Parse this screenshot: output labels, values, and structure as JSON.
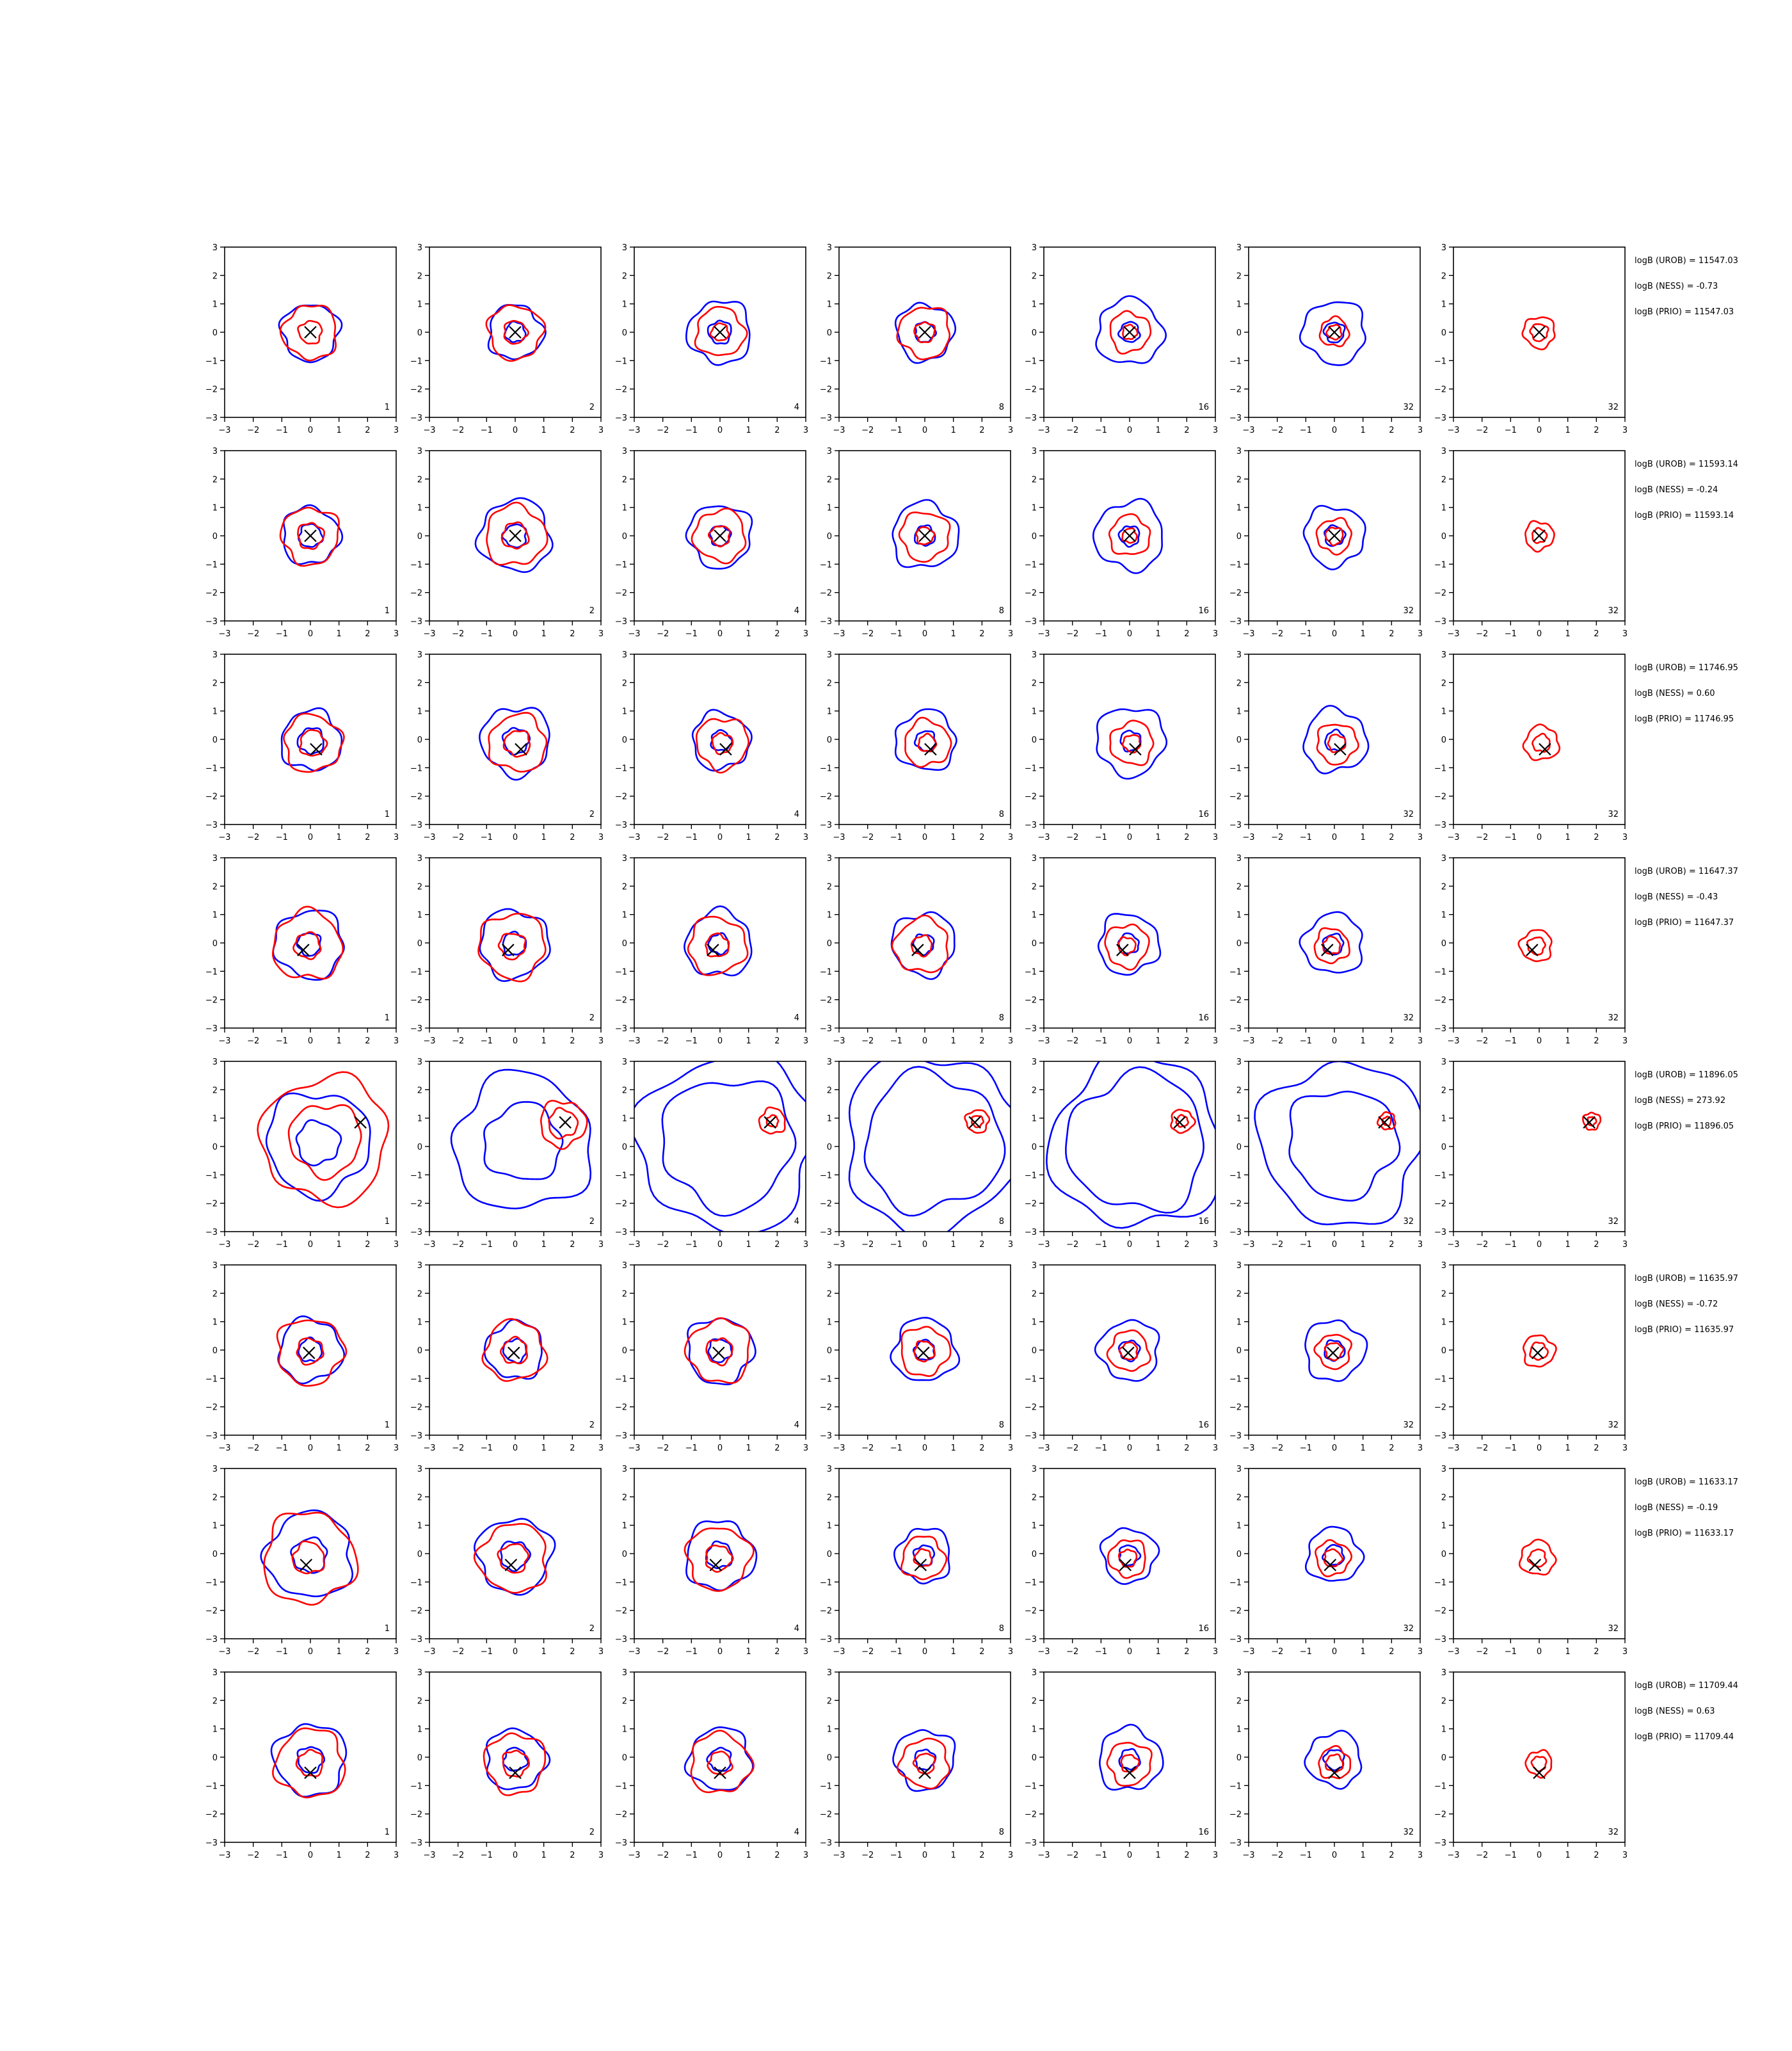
{
  "chart_data": {
    "type": "contour",
    "title": "",
    "xlabel": "",
    "ylabel": "",
    "xlim": [
      -3,
      3
    ],
    "ylim": [
      -3,
      3
    ],
    "xticks": [
      "−3",
      "−2",
      "−1",
      "0",
      "1",
      "2",
      "3"
    ],
    "yticks": [
      "3",
      "2",
      "1",
      "0",
      "−1",
      "−2",
      "−3"
    ],
    "grid": false,
    "series_colors": {
      "blue": "#0000ff",
      "red": "#ff0000",
      "marker": "#000000"
    },
    "column_labels": [
      "1",
      "2",
      "4",
      "8",
      "16",
      "32",
      "32"
    ],
    "rows": [
      {
        "marker": [
          0.0,
          0.0
        ],
        "evidence": [
          "logB (UROB) = 11547.03",
          "logB (NESS) = -0.73",
          "logB (PRIO) = 11547.03"
        ],
        "panels": [
          {
            "blue": [
              1.0
            ],
            "red": [
              0.95,
              0.4
            ]
          },
          {
            "blue": [
              0.95,
              0.35
            ],
            "red": [
              0.95,
              0.4
            ]
          },
          {
            "blue": [
              1.1,
              0.4
            ],
            "red": [
              0.85,
              0.3
            ]
          },
          {
            "blue": [
              1.0,
              0.35
            ],
            "red": [
              0.9,
              0.35
            ]
          },
          {
            "blue": [
              1.15,
              0.35
            ],
            "red": [
              0.7,
              0.25
            ]
          },
          {
            "blue": [
              1.1,
              0.35
            ],
            "red": [
              0.5,
              0.25
            ]
          },
          {
            "blue": [],
            "red": [
              0.55,
              0.3
            ]
          }
        ]
      },
      {
        "marker": [
          0.0,
          0.0
        ],
        "evidence": [
          "logB (UROB) = 11593.14",
          "logB (NESS) = -0.24",
          "logB (PRIO) = 11593.14"
        ],
        "panels": [
          {
            "blue": [
              1.0,
              0.4
            ],
            "red": [
              1.0,
              0.45
            ]
          },
          {
            "blue": [
              1.25,
              0.4
            ],
            "red": [
              1.05,
              0.45
            ]
          },
          {
            "blue": [
              1.1,
              0.35
            ],
            "red": [
              0.9,
              0.35
            ]
          },
          {
            "blue": [
              1.15,
              0.35
            ],
            "red": [
              0.85,
              0.3
            ]
          },
          {
            "blue": [
              1.2,
              0.35
            ],
            "red": [
              0.7,
              0.25
            ]
          },
          {
            "blue": [
              1.05,
              0.35
            ],
            "red": [
              0.6,
              0.3
            ]
          },
          {
            "blue": [],
            "red": [
              0.5,
              0.25
            ]
          }
        ]
      },
      {
        "marker": [
          0.2,
          -0.35
        ],
        "evidence": [
          "logB (UROB) = 11746.95",
          "logB (NESS) = 0.60",
          "logB (PRIO) = 11746.95"
        ],
        "panels": [
          {
            "blue": [
              1.05,
              0.45
            ],
            "red": [
              1.0,
              0.45
            ]
          },
          {
            "blue": [
              1.2,
              0.45
            ],
            "red": [
              1.0,
              0.45
            ]
          },
          {
            "blue": [
              1.0,
              0.35
            ],
            "red": [
              0.9,
              0.35
            ]
          },
          {
            "blue": [
              1.05,
              0.35
            ],
            "red": [
              0.8,
              0.3
            ]
          },
          {
            "blue": [
              1.2,
              0.35
            ],
            "red": [
              0.75,
              0.3
            ]
          },
          {
            "blue": [
              1.1,
              0.35
            ],
            "red": [
              0.7,
              0.3
            ]
          },
          {
            "blue": [],
            "red": [
              0.6,
              0.3
            ]
          }
        ]
      },
      {
        "marker": [
          -0.25,
          -0.25
        ],
        "evidence": [
          "logB (UROB) = 11647.37",
          "logB (NESS) = -0.43",
          "logB (PRIO) = 11647.37"
        ],
        "panels": [
          {
            "blue": [
              1.2,
              0.4
            ],
            "red": [
              1.2,
              0.45
            ]
          },
          {
            "blue": [
              1.2,
              0.4
            ],
            "red": [
              1.15,
              0.45
            ]
          },
          {
            "blue": [
              1.15,
              0.35
            ],
            "red": [
              1.0,
              0.4
            ]
          },
          {
            "blue": [
              1.1,
              0.35
            ],
            "red": [
              0.95,
              0.35
            ]
          },
          {
            "blue": [
              1.05,
              0.35
            ],
            "red": [
              0.75,
              0.3
            ]
          },
          {
            "blue": [
              1.05,
              0.35
            ],
            "red": [
              0.6,
              0.3
            ]
          },
          {
            "blue": [],
            "red": [
              0.55,
              0.3
            ]
          }
        ]
      },
      {
        "marker": [
          1.75,
          0.85
        ],
        "evidence": [
          "logB (UROB) = 11896.05",
          "logB (NESS) = 273.92",
          "logB (PRIO) = 11896.05"
        ],
        "panels": [
          {
            "blue": [
              1.8,
              0.75
            ],
            "red": [
              2.2,
              1.25
            ]
          },
          {
            "blue": [
              2.4,
              1.35
            ],
            "red": [
              0.8,
              0.5
            ]
          },
          {
            "blue": [
              3.1,
              2.3
            ],
            "red": [
              0.45,
              0.2
            ]
          },
          {
            "blue": [
              3.1,
              2.4
            ],
            "red": [
              0.4,
              0.2
            ]
          },
          {
            "blue": [
              3.0,
              2.4
            ],
            "red": [
              0.4,
              0.2
            ]
          },
          {
            "blue": [
              2.85,
              1.9
            ],
            "red": [
              0.3,
              0.15
            ]
          },
          {
            "blue": [],
            "red": [
              0.3,
              0.15
            ]
          }
        ]
      },
      {
        "marker": [
          -0.05,
          -0.1
        ],
        "evidence": [
          "logB (UROB) = 11635.97",
          "logB (NESS) = -0.72",
          "logB (PRIO) = 11635.97"
        ],
        "panels": [
          {
            "blue": [
              1.1,
              0.4
            ],
            "red": [
              1.15,
              0.45
            ]
          },
          {
            "blue": [
              1.0,
              0.4
            ],
            "red": [
              1.05,
              0.45
            ]
          },
          {
            "blue": [
              1.15,
              0.4
            ],
            "red": [
              1.1,
              0.45
            ]
          },
          {
            "blue": [
              1.1,
              0.35
            ],
            "red": [
              0.85,
              0.35
            ]
          },
          {
            "blue": [
              1.05,
              0.35
            ],
            "red": [
              0.7,
              0.3
            ]
          },
          {
            "blue": [
              1.05,
              0.35
            ],
            "red": [
              0.6,
              0.3
            ]
          },
          {
            "blue": [],
            "red": [
              0.55,
              0.3
            ]
          }
        ]
      },
      {
        "marker": [
          -0.15,
          -0.4
        ],
        "evidence": [
          "logB (UROB) = 11633.17",
          "logB (NESS) = -0.19",
          "logB (PRIO) = 11633.17"
        ],
        "panels": [
          {
            "blue": [
              1.5,
              0.6
            ],
            "red": [
              1.6,
              0.55
            ]
          },
          {
            "blue": [
              1.3,
              0.5
            ],
            "red": [
              1.2,
              0.5
            ]
          },
          {
            "blue": [
              1.2,
              0.45
            ],
            "red": [
              1.1,
              0.45
            ]
          },
          {
            "blue": [
              0.95,
              0.35
            ],
            "red": [
              0.75,
              0.3
            ]
          },
          {
            "blue": [
              0.95,
              0.35
            ],
            "red": [
              0.65,
              0.3
            ]
          },
          {
            "blue": [
              0.95,
              0.35
            ],
            "red": [
              0.6,
              0.3
            ]
          },
          {
            "blue": [],
            "red": [
              0.6,
              0.3
            ]
          }
        ]
      },
      {
        "marker": [
          0.0,
          -0.55
        ],
        "evidence": [
          "logB (UROB) = 11709.44",
          "logB (NESS) = 0.63",
          "logB (PRIO) = 11709.44"
        ],
        "panels": [
          {
            "blue": [
              1.25,
              0.45
            ],
            "red": [
              1.2,
              0.45
            ]
          },
          {
            "blue": [
              1.05,
              0.4
            ],
            "red": [
              1.05,
              0.45
            ]
          },
          {
            "blue": [
              1.1,
              0.4
            ],
            "red": [
              1.05,
              0.4
            ]
          },
          {
            "blue": [
              1.05,
              0.35
            ],
            "red": [
              0.85,
              0.35
            ]
          },
          {
            "blue": [
              1.1,
              0.35
            ],
            "red": [
              0.75,
              0.3
            ]
          },
          {
            "blue": [
              0.95,
              0.35
            ],
            "red": [
              0.55,
              0.3
            ]
          },
          {
            "blue": [],
            "red": [
              0.45,
              0.25
            ]
          }
        ]
      }
    ]
  }
}
